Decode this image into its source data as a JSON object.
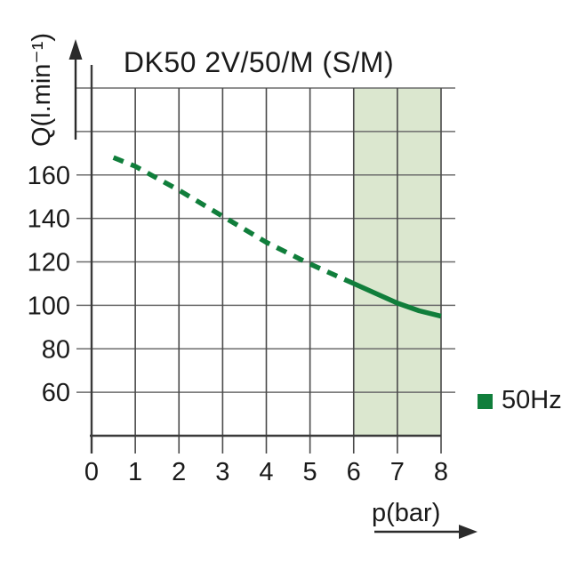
{
  "chart_data": {
    "type": "line",
    "title": "DK50 2V/50/M (S/M)",
    "xlabel": "p(bar)",
    "ylabel": "Q(l.min⁻¹)",
    "xlim": [
      0,
      8
    ],
    "ylim": [
      40,
      200
    ],
    "x_ticks": [
      0,
      1,
      2,
      3,
      4,
      5,
      6,
      7,
      8
    ],
    "y_tick_labels": [
      160,
      140,
      120,
      100,
      80,
      60
    ],
    "y_gridlines": [
      200,
      180,
      160,
      140,
      120,
      100,
      80,
      60
    ],
    "grid": "on",
    "highlight_band": {
      "x0": 6,
      "x1": 8,
      "color": "#dbe7cf"
    },
    "legend": {
      "label": "50Hz",
      "color": "#107e3b",
      "position": "right-middle"
    },
    "series": [
      {
        "name": "50Hz",
        "style": "dashed",
        "color": "#107e3b",
        "points": [
          [
            0.5,
            168
          ],
          [
            1,
            164
          ],
          [
            2,
            153
          ],
          [
            3,
            141
          ],
          [
            4,
            129
          ],
          [
            5,
            119
          ],
          [
            6,
            110
          ]
        ]
      },
      {
        "name": "50Hz",
        "style": "solid",
        "color": "#107e3b",
        "points": [
          [
            6,
            110
          ],
          [
            6.5,
            105.5
          ],
          [
            7,
            101
          ],
          [
            7.5,
            97.5
          ],
          [
            8,
            95
          ]
        ]
      }
    ]
  }
}
